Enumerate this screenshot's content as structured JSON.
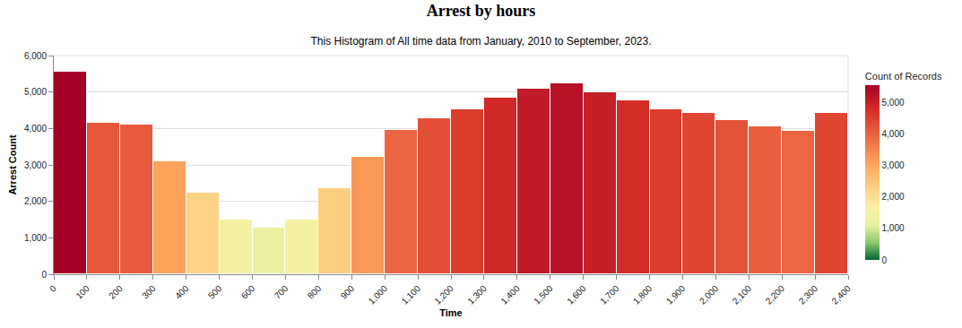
{
  "chart_data": {
    "type": "histogram",
    "title": "Arrest by hours",
    "subtitle": "This Histogram of All time data from January, 2010 to September, 2023.",
    "x_label": "Time",
    "y_label": "Arrest Count",
    "bins": [
      0,
      100,
      200,
      300,
      400,
      500,
      600,
      700,
      800,
      900,
      1000,
      1100,
      1200,
      1300,
      1400,
      1500,
      1600,
      1700,
      1800,
      1900,
      2000,
      2100,
      2200,
      2300,
      2400
    ],
    "values": [
      5550,
      4150,
      4100,
      3100,
      2250,
      1500,
      1270,
      1500,
      2350,
      3230,
      3950,
      4280,
      4520,
      4850,
      5080,
      5240,
      5000,
      4780,
      4530,
      4420,
      4230,
      4050,
      3940,
      4420
    ],
    "xlim": [
      0,
      2400
    ],
    "xticks": [
      0,
      100,
      200,
      300,
      400,
      500,
      600,
      700,
      800,
      900,
      {
        "value": 1000,
        "label": "1,000"
      },
      {
        "value": 1100,
        "label": "1,100"
      },
      {
        "value": 1200,
        "label": "1,200"
      },
      {
        "value": 1300,
        "label": "1,300"
      },
      {
        "value": 1400,
        "label": "1,400"
      },
      {
        "value": 1500,
        "label": "1,500"
      },
      {
        "value": 1600,
        "label": "1,600"
      },
      {
        "value": 1700,
        "label": "1,700"
      },
      {
        "value": 1800,
        "label": "1,800"
      },
      {
        "value": 1900,
        "label": "1,900"
      },
      {
        "value": 2000,
        "label": "2,000"
      },
      {
        "value": 2100,
        "label": "2,100"
      },
      {
        "value": 2200,
        "label": "2,200"
      },
      {
        "value": 2300,
        "label": "2,300"
      },
      {
        "value": 2400,
        "label": "2,400"
      }
    ],
    "ylim": [
      0,
      6000
    ],
    "yticks": [
      0,
      {
        "value": 1000,
        "label": "1,000"
      },
      {
        "value": 2000,
        "label": "2,000"
      },
      {
        "value": 3000,
        "label": "3,000"
      },
      {
        "value": 4000,
        "label": "4,000"
      },
      {
        "value": 5000,
        "label": "5,000"
      },
      {
        "value": 6000,
        "label": "6,000"
      }
    ],
    "grid": true,
    "colorbar": {
      "title": "Count of Records",
      "range": [
        0,
        5550
      ],
      "ticks": [
        0,
        {
          "value": 1000,
          "label": "1,000"
        },
        {
          "value": 2000,
          "label": "2,000"
        },
        {
          "value": 3000,
          "label": "3,000"
        },
        {
          "value": 4000,
          "label": "4,000"
        },
        {
          "value": 5000,
          "label": "5,000"
        }
      ]
    }
  }
}
